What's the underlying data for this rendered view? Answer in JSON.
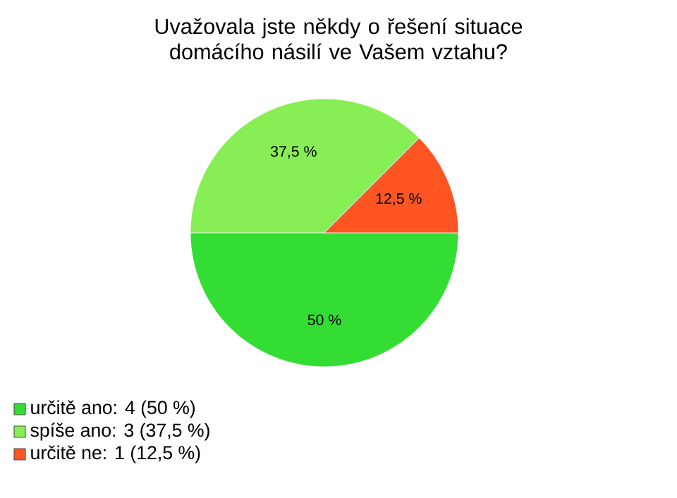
{
  "chart_data": {
    "type": "pie",
    "title": "Uvažovala jste někdy o řešení situace domácího násilí ve Vašem vztahu?",
    "categories": [
      "určitě ano: 4 (50 %)",
      "spíše ano: 3 (37,5 %)",
      "určitě ne: 1 (12,5 %)"
    ],
    "values": [
      50,
      37.5,
      12.5
    ],
    "value_labels": [
      "50 %",
      "37,5 %",
      "12,5 %"
    ],
    "colors": [
      "#33dd33",
      "#88ee55",
      "#ff5522"
    ],
    "legend": "bottom left"
  }
}
